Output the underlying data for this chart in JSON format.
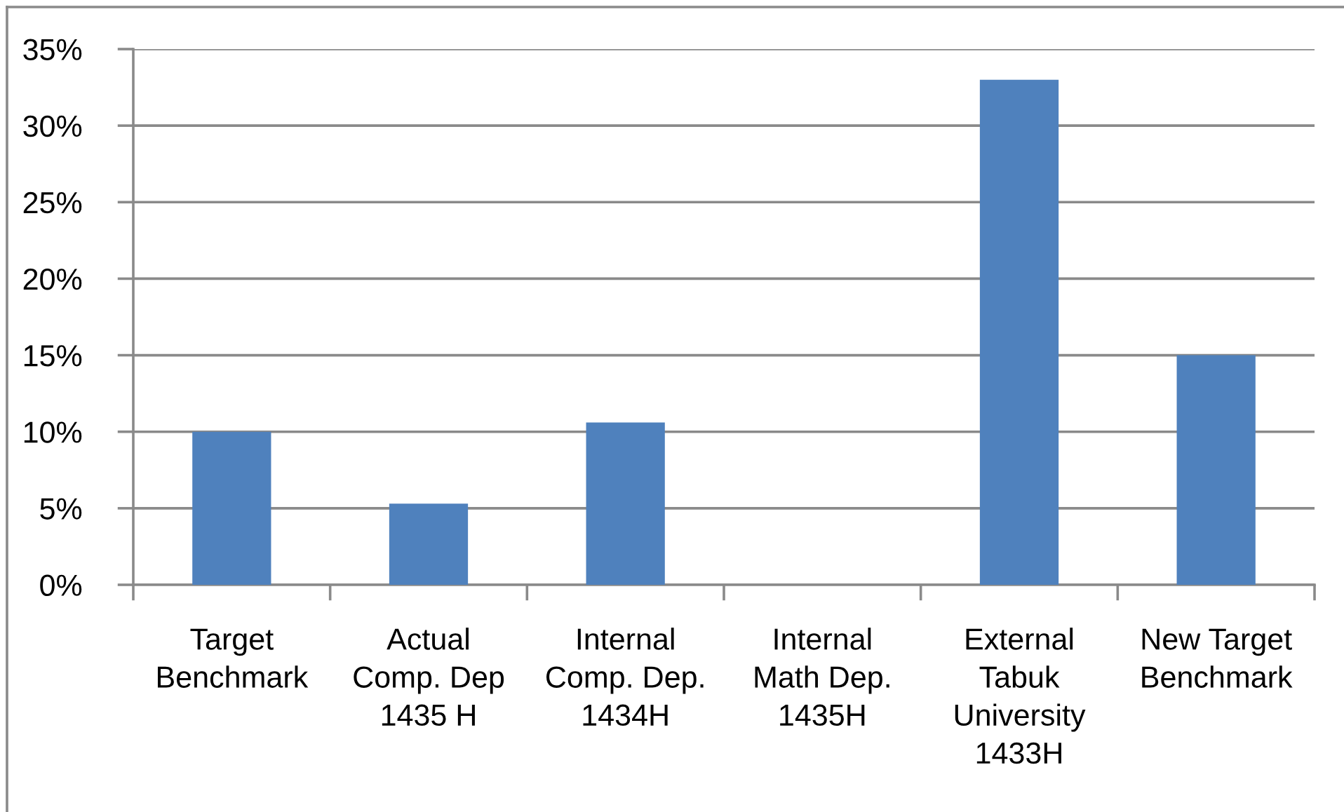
{
  "chart_data": {
    "type": "bar",
    "categories": [
      "Target\nBenchmark",
      "Actual\nComp. Dep\n1435 H",
      "Internal\nComp. Dep.\n1434H",
      "Internal\nMath Dep.\n1435H",
      "External\nTabuk\nUniversity\n1433H",
      "New Target\nBenchmark"
    ],
    "values": [
      10,
      5.3,
      10.6,
      0,
      33,
      15
    ],
    "color": "#4f81bd",
    "ylim": [
      0,
      35
    ],
    "yticks": [
      {
        "value": 0,
        "label": "0%"
      },
      {
        "value": 5,
        "label": "5%"
      },
      {
        "value": 10,
        "label": "10%"
      },
      {
        "value": 15,
        "label": "15%"
      },
      {
        "value": 20,
        "label": "20%"
      },
      {
        "value": 25,
        "label": "25%"
      },
      {
        "value": 30,
        "label": "30%"
      },
      {
        "value": 35,
        "label": "35%"
      }
    ],
    "grid": "y"
  }
}
